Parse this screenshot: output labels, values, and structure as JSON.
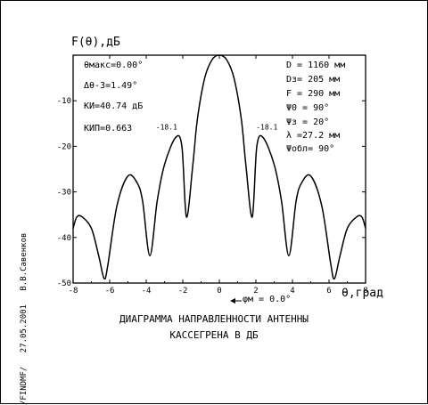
{
  "chart_data": {
    "type": "line",
    "ylabel": "F(θ),дБ",
    "xlabel": "θ,град",
    "xlim": [
      -8,
      8
    ],
    "ylim": [
      -50,
      0
    ],
    "xticks": [
      -8,
      -6,
      -4,
      -2,
      0,
      2,
      4,
      6,
      8
    ],
    "xtick_labels": [
      "-8",
      "-6",
      "-4",
      "-2",
      "0",
      "2",
      "4",
      "6",
      "8"
    ],
    "yticks": [
      -10,
      -20,
      -30,
      -40,
      -50
    ],
    "ytick_labels": [
      "-10",
      "-20",
      "-30",
      "-40",
      "-50"
    ],
    "series": [
      {
        "x": [
          -8.0,
          -7.8,
          -7.5,
          -7.0,
          -6.6,
          -6.3,
          -6.1,
          -5.6,
          -5.0,
          -4.5,
          -4.2,
          -3.8,
          -3.4,
          -3.0,
          -2.4,
          -2.05,
          -1.8,
          -1.45,
          -1.2,
          -0.8,
          -0.4,
          0.0,
          0.4,
          0.8,
          1.2,
          1.45,
          1.8,
          2.05,
          2.4,
          3.0,
          3.4,
          3.8,
          4.2,
          4.5,
          5.0,
          5.6,
          6.1,
          6.3,
          6.6,
          7.0,
          7.5,
          7.8,
          8.0
        ],
        "y": [
          -38,
          -35.5,
          -35.5,
          -38,
          -44,
          -49,
          -46,
          -33,
          -26.5,
          -28,
          -32,
          -44,
          -32,
          -24,
          -18.1,
          -20,
          -35.5,
          -24,
          -14,
          -5,
          -1,
          0,
          -1,
          -5,
          -14,
          -24,
          -35.5,
          -20,
          -18.1,
          -24,
          -32,
          -44,
          -32,
          -28,
          -26.5,
          -33,
          -46,
          -49,
          -44,
          -38,
          -35.5,
          -35.5,
          -38
        ]
      }
    ],
    "annotations": [
      {
        "text": "-18.1",
        "x": -2.4,
        "y": -18.1
      },
      {
        "text": "-18.1",
        "x": 2.4,
        "y": -18.1
      }
    ],
    "grid": false
  },
  "params_left": [
    "θмакс=0.00°",
    "Δθ-3=1.49°",
    "КИ=40.74 дБ",
    "КИП=0.663"
  ],
  "params_right": [
    "D = 1160 мм",
    "Dз= 205 мм",
    "F = 290 мм",
    "Ψ0 = 90°",
    "Ψз = 20°",
    "λ =27.2 мм",
    "Ψобл= 90°"
  ],
  "phi_label": "φм = 0.0°",
  "caption": [
    "ДИАГРАММА НАПРАВЛЕННОСТИ АНТЕННЫ",
    "КАССЕГРЕНА В ДБ"
  ],
  "side_info": [
    "/FINDMF/",
    "27.05.2001",
    "В.В.Савенков"
  ],
  "colors": {
    "line": "#000000",
    "background": "#ffffff"
  }
}
